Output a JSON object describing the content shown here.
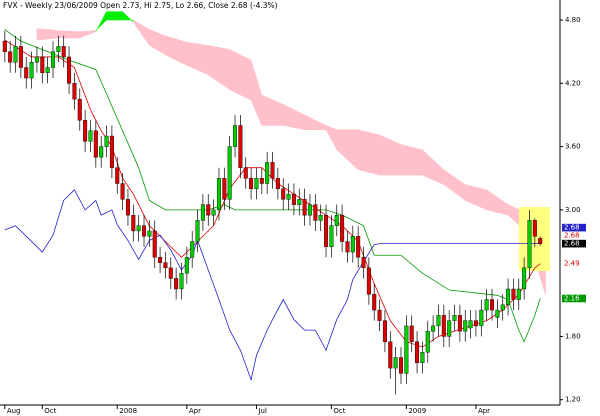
{
  "chart_data": {
    "type": "candlestick",
    "title": "FVX - Weekly 23/06/2009 Open 2.73, Hi 2.75, Lo 2.66, Close 2.68 (-4.3%)",
    "xlim": [
      -0.9,
      103.7
    ],
    "xticks": [
      {
        "value": 0,
        "label": "Aug"
      },
      {
        "value": 7,
        "label": "Oct"
      },
      {
        "value": 21,
        "label": "2008"
      },
      {
        "value": 34,
        "label": "Apr"
      },
      {
        "value": 47,
        "label": "Jul"
      },
      {
        "value": 61,
        "label": "Oct"
      },
      {
        "value": 75,
        "label": "2009"
      },
      {
        "value": 88,
        "label": "Apr"
      }
    ],
    "ylim": [
      1.15,
      4.99
    ],
    "yticks": [
      {
        "value": 1.2,
        "label": "1.20"
      },
      {
        "value": 1.8,
        "label": "1.80"
      },
      {
        "value": 3.0,
        "label": "3.00"
      },
      {
        "value": 3.6,
        "label": "3.60"
      },
      {
        "value": 4.2,
        "label": "4.20"
      },
      {
        "value": 4.8,
        "label": "4.80"
      }
    ],
    "up_color": "#00cc00",
    "down_color": "#dd0000",
    "open": [
      4.6,
      4.5,
      4.4,
      4.55,
      4.35,
      4.25,
      4.4,
      4.45,
      4.3,
      4.35,
      4.5,
      4.55,
      4.45,
      4.2,
      4.05,
      3.85,
      3.65,
      3.75,
      3.5,
      3.6,
      3.7,
      3.4,
      3.25,
      3.1,
      2.95,
      2.8,
      2.85,
      2.75,
      2.8,
      2.55,
      2.5,
      2.45,
      2.35,
      2.25,
      2.4,
      2.55,
      2.7,
      2.9,
      3.05,
      2.95,
      3.0,
      3.3,
      3.1,
      3.6,
      3.8,
      3.4,
      3.3,
      3.2,
      3.3,
      3.25,
      3.45,
      3.3,
      3.2,
      3.1,
      3.15,
      3.05,
      3.1,
      2.95,
      3.05,
      2.9,
      2.95,
      2.65,
      2.85,
      2.95,
      2.7,
      2.6,
      2.75,
      2.55,
      2.45,
      2.2,
      2.05,
      1.95,
      1.75,
      1.5,
      1.6,
      1.45,
      1.9,
      1.75,
      1.55,
      1.65,
      1.85,
      1.9,
      2.0,
      1.8,
      1.95,
      2.0,
      1.85,
      1.88,
      1.95,
      1.9,
      2.05,
      2.15,
      1.98,
      2.05,
      2.1,
      2.25,
      2.15,
      2.25,
      2.45,
      2.9,
      2.73
    ],
    "high": [
      4.7,
      4.6,
      4.65,
      4.65,
      4.45,
      4.5,
      4.55,
      4.55,
      4.45,
      4.6,
      4.65,
      4.65,
      4.55,
      4.3,
      4.15,
      3.95,
      3.85,
      3.85,
      3.7,
      3.8,
      3.8,
      3.5,
      3.35,
      3.2,
      3.05,
      2.95,
      2.95,
      2.9,
      2.9,
      2.65,
      2.6,
      2.55,
      2.45,
      2.5,
      2.65,
      2.8,
      3.0,
      3.15,
      3.15,
      3.1,
      3.4,
      3.4,
      3.7,
      3.9,
      3.9,
      3.5,
      3.4,
      3.4,
      3.4,
      3.55,
      3.55,
      3.4,
      3.3,
      3.25,
      3.25,
      3.2,
      3.2,
      3.15,
      3.15,
      3.05,
      3.05,
      2.95,
      3.05,
      3.05,
      2.8,
      2.85,
      2.85,
      2.65,
      2.55,
      2.3,
      2.15,
      2.05,
      1.85,
      1.7,
      1.7,
      2.0,
      2.0,
      1.85,
      1.75,
      1.95,
      2.0,
      2.1,
      2.1,
      2.05,
      2.1,
      2.1,
      2.05,
      2.05,
      2.05,
      2.15,
      2.25,
      2.25,
      2.15,
      2.2,
      2.35,
      2.35,
      2.35,
      2.55,
      3.0,
      2.92,
      2.75
    ],
    "low": [
      4.4,
      4.3,
      4.3,
      4.25,
      4.15,
      4.15,
      4.3,
      4.2,
      4.2,
      4.25,
      4.4,
      4.35,
      4.1,
      3.95,
      3.75,
      3.55,
      3.55,
      3.4,
      3.4,
      3.5,
      3.3,
      3.15,
      3.0,
      2.85,
      2.7,
      2.7,
      2.65,
      2.65,
      2.45,
      2.4,
      2.35,
      2.25,
      2.15,
      2.15,
      2.3,
      2.45,
      2.6,
      2.8,
      2.85,
      2.85,
      2.9,
      3.0,
      3.0,
      3.5,
      3.3,
      3.2,
      3.1,
      3.1,
      3.15,
      3.15,
      3.2,
      3.1,
      3.0,
      3.0,
      2.95,
      2.95,
      2.85,
      2.85,
      2.8,
      2.8,
      2.55,
      2.55,
      2.75,
      2.6,
      2.5,
      2.5,
      2.45,
      2.35,
      2.1,
      1.95,
      1.85,
      1.65,
      1.4,
      1.25,
      1.35,
      1.35,
      1.65,
      1.45,
      1.45,
      1.55,
      1.75,
      1.8,
      1.7,
      1.7,
      1.85,
      1.75,
      1.75,
      1.78,
      1.8,
      1.8,
      1.95,
      1.95,
      1.88,
      1.95,
      2.0,
      2.05,
      2.05,
      2.15,
      2.35,
      2.65,
      2.66
    ],
    "close": [
      4.5,
      4.4,
      4.55,
      4.35,
      4.25,
      4.4,
      4.45,
      4.3,
      4.35,
      4.5,
      4.55,
      4.45,
      4.2,
      4.05,
      3.85,
      3.65,
      3.75,
      3.5,
      3.6,
      3.7,
      3.4,
      3.25,
      3.1,
      2.95,
      2.8,
      2.85,
      2.75,
      2.8,
      2.55,
      2.5,
      2.45,
      2.35,
      2.25,
      2.4,
      2.55,
      2.7,
      2.9,
      3.05,
      2.95,
      3.0,
      3.3,
      3.1,
      3.6,
      3.8,
      3.4,
      3.3,
      3.2,
      3.3,
      3.25,
      3.45,
      3.3,
      3.2,
      3.1,
      3.15,
      3.05,
      3.1,
      2.95,
      3.05,
      2.9,
      2.95,
      2.65,
      2.85,
      2.95,
      2.7,
      2.6,
      2.75,
      2.55,
      2.45,
      2.2,
      2.05,
      1.95,
      1.75,
      1.5,
      1.6,
      1.45,
      1.9,
      1.75,
      1.55,
      1.65,
      1.85,
      1.9,
      2.0,
      1.8,
      1.95,
      2.0,
      1.85,
      1.95,
      1.95,
      1.9,
      2.05,
      2.15,
      2.05,
      2.05,
      2.1,
      2.25,
      2.15,
      2.25,
      2.45,
      2.9,
      2.75,
      2.68
    ],
    "cloud": {
      "x": [
        6,
        10,
        14,
        17,
        19,
        22,
        24,
        27,
        30,
        34,
        38,
        42,
        46,
        48,
        52,
        56,
        60,
        62,
        66,
        70,
        74,
        78,
        82,
        86,
        90,
        94,
        97,
        99,
        101
      ],
      "span_a": [
        4.61,
        4.63,
        4.63,
        4.69,
        4.88,
        4.88,
        4.78,
        4.56,
        4.47,
        4.37,
        4.28,
        4.14,
        4.04,
        3.8,
        3.8,
        3.76,
        3.76,
        3.57,
        3.38,
        3.33,
        3.33,
        3.33,
        3.24,
        3.09,
        3.0,
        2.95,
        2.81,
        2.53,
        2.19
      ],
      "span_b": [
        4.72,
        4.7,
        4.69,
        4.7,
        4.8,
        4.8,
        4.8,
        4.71,
        4.65,
        4.59,
        4.56,
        4.52,
        4.42,
        4.09,
        4.0,
        3.9,
        3.8,
        3.76,
        3.76,
        3.71,
        3.62,
        3.57,
        3.38,
        3.24,
        3.19,
        3.05,
        2.98,
        2.86,
        2.71
      ],
      "bull_color": "#00ee00",
      "bear_color": "#ffc0cb"
    },
    "series": [
      {
        "color": "#009900",
        "x": [
          0,
          3,
          8,
          12,
          17,
          19,
          22,
          25,
          27,
          30,
          38,
          41,
          43,
          60,
          63,
          67,
          69,
          74,
          78,
          83,
          92,
          94,
          96,
          97,
          99,
          100
        ],
        "values": [
          4.71,
          4.6,
          4.5,
          4.42,
          4.33,
          4.1,
          3.75,
          3.4,
          3.09,
          3.0,
          3.0,
          3.05,
          3.0,
          3.0,
          2.95,
          2.85,
          2.57,
          2.57,
          2.4,
          2.24,
          2.19,
          2.15,
          1.86,
          1.75,
          2.0,
          2.16
        ]
      },
      {
        "color": "#dd0000",
        "x": [
          0,
          5,
          10,
          13,
          16,
          18,
          20,
          22,
          24,
          27,
          30,
          33,
          36,
          39,
          42,
          45,
          48,
          51,
          54,
          57,
          60,
          63,
          66,
          69,
          72,
          75,
          78,
          81,
          84,
          87,
          90,
          93,
          96,
          99,
          100
        ],
        "values": [
          4.61,
          4.45,
          4.45,
          4.35,
          3.95,
          3.75,
          3.6,
          3.3,
          3.15,
          2.85,
          2.7,
          2.55,
          2.7,
          2.85,
          3.2,
          3.4,
          3.4,
          3.25,
          3.15,
          3.05,
          2.95,
          2.85,
          2.7,
          2.3,
          1.95,
          1.75,
          1.7,
          1.8,
          1.85,
          1.9,
          1.95,
          2.05,
          2.2,
          2.45,
          2.49
        ]
      },
      {
        "color": "#2222cc",
        "x": [
          0,
          2,
          7,
          9,
          11,
          13,
          15,
          17,
          18,
          20,
          21,
          23,
          25,
          27,
          29,
          31,
          33,
          35,
          36,
          38,
          40,
          42,
          44,
          46,
          47,
          49,
          50,
          52,
          54,
          56,
          58,
          60,
          62,
          64,
          65,
          67,
          69,
          70
        ],
        "values": [
          2.81,
          2.85,
          2.6,
          2.76,
          3.09,
          3.19,
          3.0,
          3.09,
          2.95,
          3.0,
          2.86,
          2.71,
          2.53,
          2.71,
          2.76,
          2.62,
          2.43,
          2.57,
          2.71,
          2.43,
          2.15,
          1.86,
          1.67,
          1.39,
          1.62,
          1.86,
          1.96,
          2.15,
          1.96,
          1.86,
          1.86,
          1.67,
          1.96,
          2.15,
          2.34,
          2.51,
          2.67,
          2.68
        ]
      }
    ],
    "price_labels": [
      {
        "value": 2.68,
        "color": "#2222cc",
        "filled": true
      },
      {
        "value": 2.68,
        "color": "#dd0000",
        "filled": false
      },
      {
        "value": 2.68,
        "color": "#000000",
        "filled": true
      },
      {
        "value": 2.49,
        "color": "#dd0000",
        "filled": false
      },
      {
        "value": 2.16,
        "color": "#009900",
        "filled": true
      }
    ]
  }
}
